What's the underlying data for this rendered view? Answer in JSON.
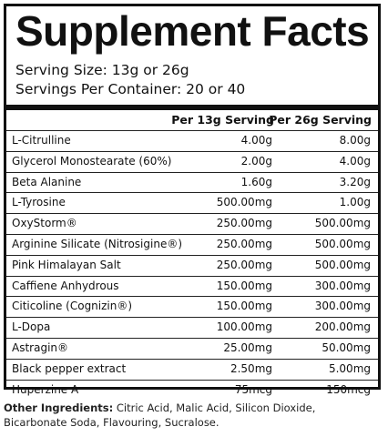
{
  "title": "Supplement Facts",
  "serving_size": "Serving Size: 13g or 26g",
  "servings_per_container": "Servings Per Container: 20 or 40",
  "columns": [
    "Per 13g Serving",
    "Per 26g Serving"
  ],
  "rows": [
    {
      "name": "L-Citrulline",
      "v1": "4.00g",
      "v2": "8.00g"
    },
    {
      "name": "Glycerol Monostearate (60%)",
      "v1": "2.00g",
      "v2": "4.00g"
    },
    {
      "name": "Beta Alanine",
      "v1": "1.60g",
      "v2": "3.20g"
    },
    {
      "name": "L-Tyrosine",
      "v1": "500.00mg",
      "v2": "1.00g"
    },
    {
      "name": "OxyStorm®",
      "v1": "250.00mg",
      "v2": "500.00mg"
    },
    {
      "name": "Arginine Silicate (Nitrosigine®)",
      "v1": "250.00mg",
      "v2": "500.00mg"
    },
    {
      "name": "Pink Himalayan Salt",
      "v1": "250.00mg",
      "v2": "500.00mg"
    },
    {
      "name": "Caffiene Anhydrous",
      "v1": "150.00mg",
      "v2": "300.00mg"
    },
    {
      "name": "Citicoline (Cognizin®)",
      "v1": "150.00mg",
      "v2": "300.00mg"
    },
    {
      "name": "L-Dopa",
      "v1": "100.00mg",
      "v2": "200.00mg"
    },
    {
      "name": "Astragin®",
      "v1": "25.00mg",
      "v2": "50.00mg"
    },
    {
      "name": "Black pepper extract",
      "v1": "2.50mg",
      "v2": "5.00mg"
    },
    {
      "name": "Huperzine A",
      "v1": "75mcg",
      "v2": "150mcg"
    }
  ],
  "other_ingredients_label": "Other Ingredients:",
  "other_ingredients_text": " Citric Acid, Malic Acid, Silicon Dioxide, Bicarbonate Soda, Flavouring, Sucralose."
}
